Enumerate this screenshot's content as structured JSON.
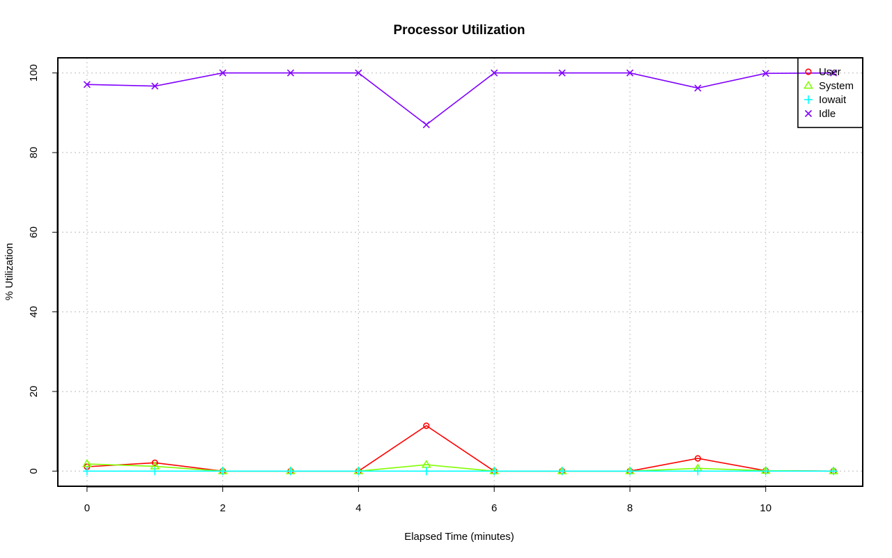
{
  "chart_data": {
    "type": "line",
    "title": "Processor Utilization",
    "xlabel": "Elapsed Time (minutes)",
    "ylabel": "% Utilization",
    "x": [
      0,
      1,
      2,
      3,
      4,
      5,
      6,
      7,
      8,
      9,
      10,
      11
    ],
    "xlim": [
      -0.43,
      11.43
    ],
    "ylim": [
      -3.8,
      103.8
    ],
    "xticks": [
      0,
      2,
      4,
      6,
      8,
      10
    ],
    "yticks": [
      0,
      20,
      40,
      60,
      80,
      100
    ],
    "grid": true,
    "legend_position": "top-right",
    "series": [
      {
        "name": "User",
        "color": "#ff0000",
        "marker": "circle",
        "values": [
          1.1,
          2.1,
          0.0,
          0.0,
          0.0,
          11.4,
          0.0,
          0.0,
          0.0,
          3.2,
          0.1,
          0.0
        ]
      },
      {
        "name": "System",
        "color": "#80ff00",
        "marker": "triangle",
        "values": [
          1.8,
          1.2,
          0.0,
          0.0,
          0.0,
          1.6,
          0.0,
          0.0,
          0.0,
          0.7,
          0.1,
          0.0
        ]
      },
      {
        "name": "Iowait",
        "color": "#00ffff",
        "marker": "plus",
        "values": [
          0.0,
          0.0,
          0.0,
          0.0,
          0.0,
          0.0,
          0.0,
          0.0,
          0.0,
          0.0,
          0.0,
          0.0
        ]
      },
      {
        "name": "Idle",
        "color": "#8000ff",
        "marker": "cross",
        "values": [
          97.1,
          96.7,
          100.0,
          100.0,
          100.0,
          87.0,
          100.0,
          100.0,
          100.0,
          96.2,
          99.9,
          100.0
        ]
      }
    ]
  }
}
